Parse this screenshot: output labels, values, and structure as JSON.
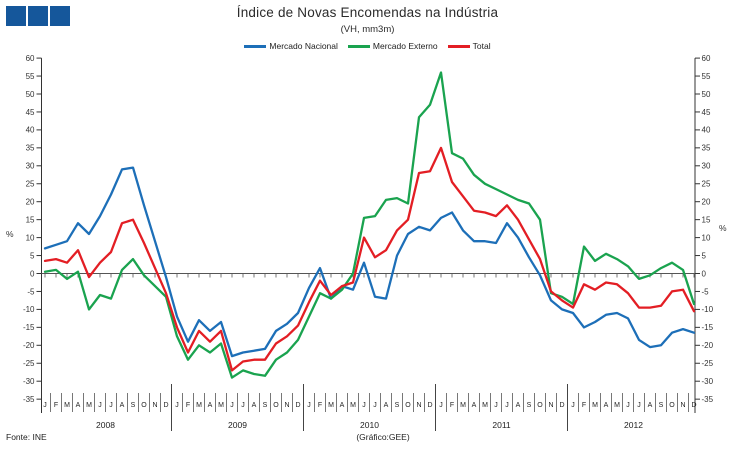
{
  "header": {
    "title": "Índice de Novas Encomendas na Indústria",
    "subtitle": "(VH, mm3m)"
  },
  "logo": {
    "color": "#15579B",
    "square_count": 3
  },
  "legend": [
    {
      "label": "Mercado Nacional",
      "color": "#1D6FB8"
    },
    {
      "label": "Mercado Externo",
      "color": "#1AA34F"
    },
    {
      "label": "Total",
      "color": "#E31E24"
    }
  ],
  "axis": {
    "unit_label_left": "%",
    "unit_label_right": "%"
  },
  "footer": {
    "source": "Fonte: INE",
    "credit": "(Gráfico:GEE)"
  },
  "chart_data": {
    "type": "line",
    "title": "Índice de Novas Encomendas na Indústria",
    "subtitle": "(VH, mm3m)",
    "ylabel": "%",
    "ylim": [
      -35,
      60
    ],
    "ytick_step": 5,
    "grid": false,
    "legend_position": "top",
    "years": [
      2008,
      2009,
      2010,
      2011,
      2012
    ],
    "months": [
      "J",
      "F",
      "M",
      "A",
      "M",
      "J",
      "J",
      "A",
      "S",
      "O",
      "N",
      "D"
    ],
    "series": [
      {
        "name": "Mercado Nacional",
        "color": "#1D6FB8",
        "values": [
          7,
          8,
          9,
          14,
          11,
          16,
          22,
          29,
          29.5,
          19,
          9,
          -1,
          -12,
          -19,
          -13,
          -16,
          -13.5,
          -23,
          -22,
          -21.5,
          -21,
          -16,
          -14,
          -11,
          -4,
          1.5,
          -7,
          -3.5,
          -4.5,
          3,
          -6.5,
          -7,
          5,
          11,
          13,
          12,
          15.5,
          17,
          12,
          9,
          9,
          8.5,
          14,
          10,
          4.5,
          -0.5,
          -7.5,
          -10,
          -11,
          -15,
          -13.5,
          -11.5,
          -11,
          -12.5,
          -18.5,
          -20.5,
          -20,
          -16.5,
          -15.5,
          -16.5
        ]
      },
      {
        "name": "Mercado Externo",
        "color": "#1AA34F",
        "values": [
          0.5,
          1,
          -1.5,
          0.5,
          -10,
          -6,
          -7,
          1,
          4,
          -0.5,
          -3.5,
          -6.5,
          -17.5,
          -24,
          -20,
          -22,
          -19.5,
          -29,
          -27,
          -28,
          -28.5,
          -24,
          -22,
          -18.5,
          -12,
          -5.5,
          -7,
          -4.5,
          0,
          15.5,
          16,
          20.5,
          21,
          19.5,
          43.5,
          47,
          56,
          33.5,
          32,
          27.5,
          25,
          23.5,
          22,
          20.5,
          19.5,
          15,
          -5.5,
          -6.5,
          -8.5,
          7.5,
          3.5,
          5.5,
          4,
          2,
          -1.5,
          -0.5,
          1.5,
          3,
          1,
          -8.5
        ]
      },
      {
        "name": "Total",
        "color": "#E31E24",
        "values": [
          3.5,
          4,
          3,
          6.5,
          -1,
          3,
          6,
          14,
          15,
          8.5,
          1.5,
          -5.5,
          -15,
          -22,
          -16,
          -19,
          -16,
          -27,
          -24.5,
          -24,
          -24,
          -19.5,
          -17.5,
          -14.5,
          -8,
          -2,
          -6,
          -3.5,
          -2.5,
          10,
          4.5,
          6.5,
          12,
          15,
          28,
          28.5,
          35,
          25.5,
          21.5,
          17.5,
          17,
          16,
          19,
          15,
          9.5,
          4,
          -5,
          -7.5,
          -9.5,
          -3,
          -4.5,
          -2.5,
          -3,
          -5.5,
          -9.5,
          -9.5,
          -9,
          -5,
          -4.5,
          -10.5
        ]
      }
    ]
  }
}
